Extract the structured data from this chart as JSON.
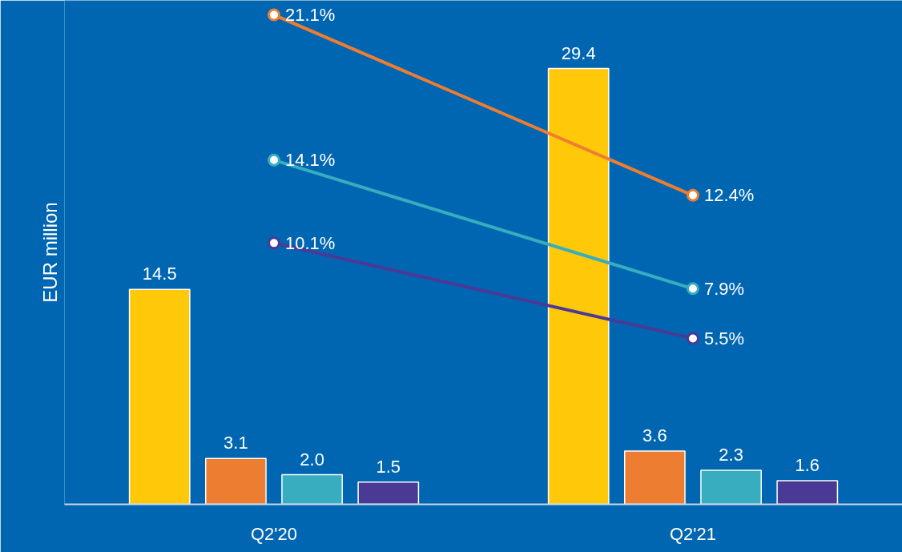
{
  "chart_data": {
    "type": "bar",
    "ylabel": "EUR million",
    "categories": [
      "Q2'20",
      "Q2'21"
    ],
    "series": [
      {
        "color": "#ffc90a",
        "values": [
          14.5,
          29.4
        ],
        "value_labels": [
          "14.5",
          "29.4"
        ]
      },
      {
        "color": "#ed7d31",
        "values": [
          3.1,
          3.6
        ],
        "value_labels": [
          "3.1",
          "3.6"
        ]
      },
      {
        "color": "#37adbf",
        "values": [
          2.0,
          2.3
        ],
        "value_labels": [
          "2.0",
          "2.3"
        ]
      },
      {
        "color": "#4b3996",
        "values": [
          1.5,
          1.6
        ],
        "value_labels": [
          "1.5",
          "1.6"
        ]
      },
      {
        "type": "line",
        "axis": "y2",
        "color": "#ed7d31",
        "values": [
          21.1,
          12.4
        ],
        "value_labels": [
          "21.1%",
          "12.4%"
        ]
      },
      {
        "type": "line",
        "axis": "y2",
        "color": "#37adbf",
        "values": [
          14.1,
          7.9
        ],
        "value_labels": [
          "14.1%",
          "7.9%"
        ]
      },
      {
        "type": "line",
        "axis": "y2",
        "color": "#4b3996",
        "values": [
          10.1,
          5.5
        ],
        "value_labels": [
          "10.1%",
          "5.5%"
        ]
      }
    ],
    "ylim": [
      0,
      34
    ],
    "y2lim": [
      -2.5,
      21.8
    ],
    "marker": "circle",
    "line_style": "solid",
    "grid": false,
    "tick_labels": "x"
  }
}
